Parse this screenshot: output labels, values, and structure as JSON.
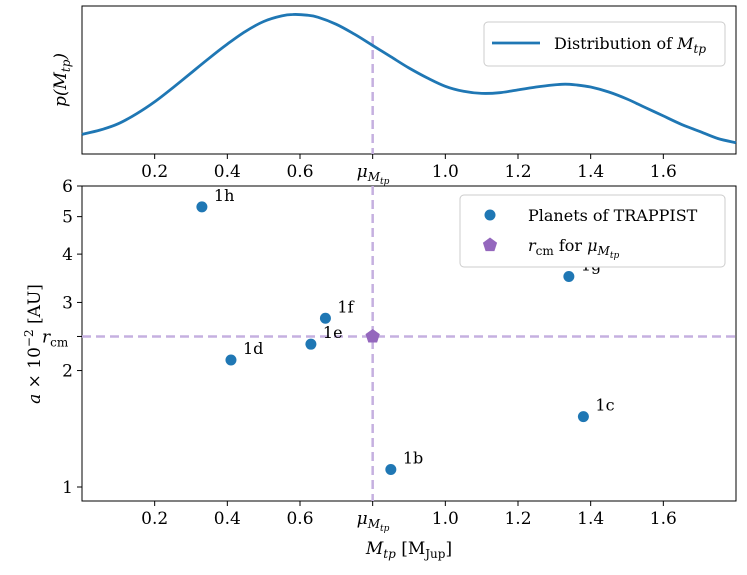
{
  "colors": {
    "blue": "#1f77b4",
    "purple": "#9467bd",
    "guide": "#c5b0e0"
  },
  "chart_data": [
    {
      "type": "line",
      "title": "",
      "ylabel_base": "p(M",
      "ylabel_sub": "tp",
      "ylabel_close": ")",
      "xlim": [
        0.0,
        1.8
      ],
      "x_ticks": [
        0.2,
        0.4,
        0.6,
        1.0,
        1.2,
        1.4,
        1.6
      ],
      "x_tick_labels": [
        "0.2",
        "0.4",
        "0.6",
        "1.0",
        "1.2",
        "1.4",
        "1.6"
      ],
      "mu_tick": {
        "value": 0.8,
        "base": "μ",
        "sub": "M",
        "subsub": "tp"
      },
      "series": [
        {
          "name": "Distribution of M_tp",
          "legend_base": "Distribution of ",
          "legend_var": "M",
          "legend_sub": "tp",
          "x": [
            0.0,
            0.05,
            0.1,
            0.15,
            0.2,
            0.25,
            0.3,
            0.35,
            0.4,
            0.45,
            0.5,
            0.55,
            0.58,
            0.62,
            0.65,
            0.7,
            0.75,
            0.8,
            0.85,
            0.9,
            0.95,
            1.0,
            1.05,
            1.1,
            1.15,
            1.2,
            1.25,
            1.3,
            1.33,
            1.36,
            1.4,
            1.45,
            1.5,
            1.55,
            1.6,
            1.65,
            1.7,
            1.75,
            1.8
          ],
          "y": [
            0.14,
            0.17,
            0.215,
            0.285,
            0.37,
            0.47,
            0.575,
            0.68,
            0.78,
            0.87,
            0.94,
            0.98,
            0.99,
            0.985,
            0.97,
            0.92,
            0.85,
            0.77,
            0.69,
            0.61,
            0.54,
            0.48,
            0.445,
            0.43,
            0.435,
            0.455,
            0.475,
            0.49,
            0.495,
            0.49,
            0.475,
            0.44,
            0.39,
            0.33,
            0.27,
            0.21,
            0.16,
            0.11,
            0.08
          ]
        }
      ],
      "ylim": [
        0.0,
        1.05
      ],
      "vline_at": 0.8,
      "legend_position": "top-right"
    },
    {
      "type": "scatter",
      "xlim": [
        0.0,
        1.8
      ],
      "ylog": true,
      "ylim": [
        0.92,
        6.0
      ],
      "x_ticks": [
        0.2,
        0.4,
        0.6,
        1.0,
        1.2,
        1.4,
        1.6
      ],
      "x_tick_labels": [
        "0.2",
        "0.4",
        "0.6",
        "1.0",
        "1.2",
        "1.4",
        "1.6"
      ],
      "mu_tick": {
        "value": 0.8,
        "base": "μ",
        "sub": "M",
        "subsub": "tp"
      },
      "y_ticks": [
        1,
        2,
        3,
        4,
        5,
        6
      ],
      "y_tick_labels": [
        "1",
        "2",
        "3",
        "4",
        "5",
        "6"
      ],
      "rcm_tick": {
        "value": 2.45,
        "base": "r",
        "sub": "cm"
      },
      "xlabel_var": "M",
      "xlabel_sub": "tp",
      "xlabel_unit": " [M",
      "xlabel_unit_sub": "Jup",
      "xlabel_close": "]",
      "ylabel_var": "a",
      "ylabel_mid": " × 10",
      "ylabel_exp": "−2",
      "ylabel_unit": " [AU]",
      "series": [
        {
          "name": "Planets of TRAPPIST",
          "points": [
            {
              "label": "1b",
              "x": 0.85,
              "y": 1.11
            },
            {
              "label": "1c",
              "x": 1.38,
              "y": 1.52
            },
            {
              "label": "1d",
              "x": 0.41,
              "y": 2.13
            },
            {
              "label": "1e",
              "x": 0.63,
              "y": 2.34
            },
            {
              "label": "1f",
              "x": 0.67,
              "y": 2.73
            },
            {
              "label": "1g",
              "x": 1.34,
              "y": 3.5
            },
            {
              "label": "1h",
              "x": 0.33,
              "y": 5.3
            }
          ]
        },
        {
          "name": "r_cm for μ_Mtp",
          "legend_base": "r",
          "legend_sub": "cm",
          "legend_mid": " for ",
          "legend_mu": "μ",
          "legend_mu_sub": "M",
          "legend_mu_subsub": "tp",
          "points": [
            {
              "x": 0.8,
              "y": 2.45
            }
          ]
        }
      ],
      "hline_at": 2.45,
      "vline_at": 0.8,
      "legend_position": "top-right"
    }
  ]
}
